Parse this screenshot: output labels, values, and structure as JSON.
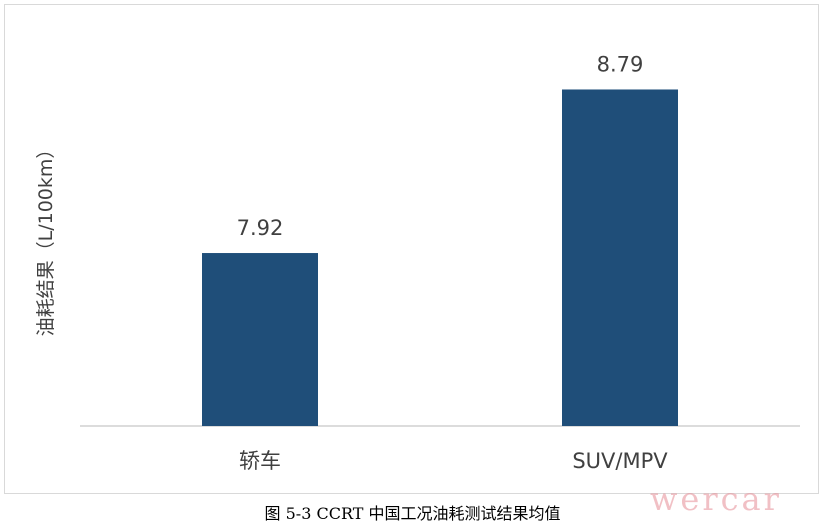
{
  "chart_data": {
    "type": "bar",
    "title": "",
    "ylabel": "油耗结果（L/100km）",
    "xlabel": "",
    "categories": [
      "轿车",
      "SUV/MPV"
    ],
    "values": [
      7.92,
      8.79
    ],
    "data_labels": [
      "7.92",
      "8.79"
    ],
    "ylim": [
      7.0,
      9.0
    ],
    "grid": false,
    "bar_color": "#1f4e79"
  },
  "caption": "图 5-3 CCRT 中国工况油耗测试结果均值",
  "watermark": "wercar"
}
